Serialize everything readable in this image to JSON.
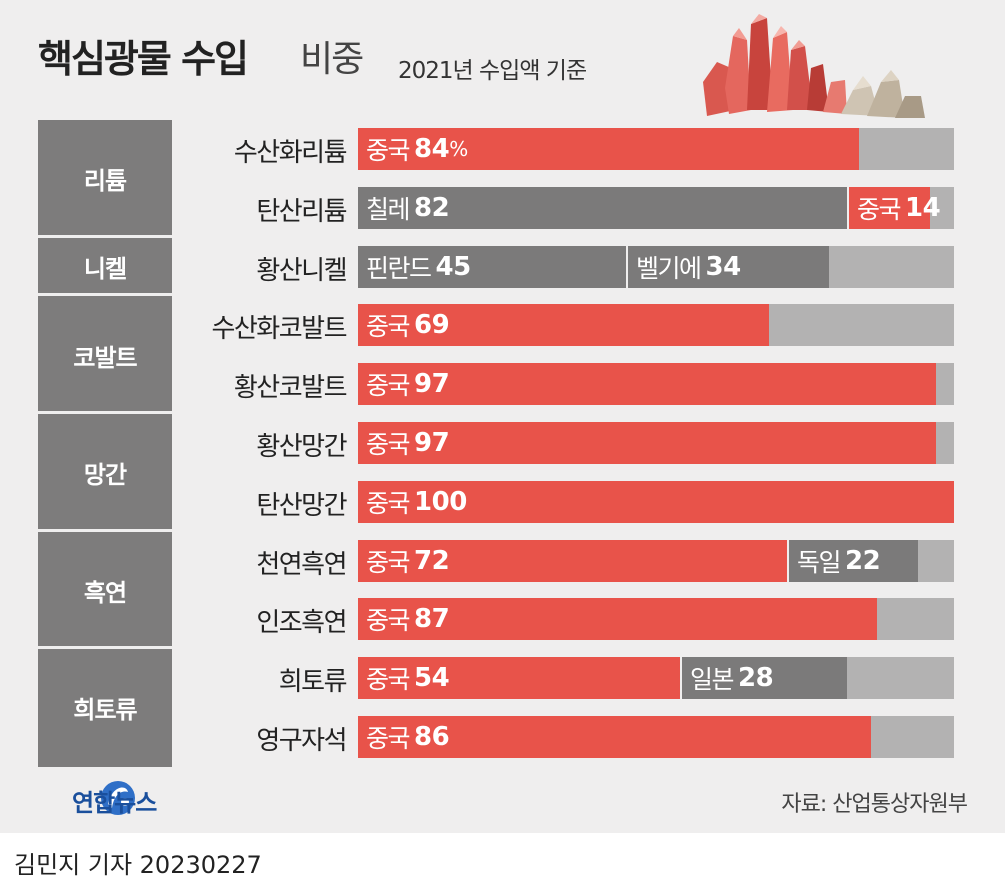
{
  "header": {
    "title": "핵심광물 수입",
    "title_suffix": "비중",
    "subtitle": "2021년 수입액 기준"
  },
  "colors": {
    "china": "#e8534a",
    "other_country": "#7b7a7a",
    "remainder": "#b3b2b2",
    "group_label_bg": "#7d7c7c",
    "card_bg": "#efeeee"
  },
  "chart_data": {
    "type": "bar",
    "orientation": "horizontal",
    "stacked": true,
    "unit": "%",
    "xlim": [
      0,
      100
    ],
    "groups": [
      {
        "name": "리튬",
        "items": [
          {
            "label": "수산화리튬",
            "segments": [
              {
                "country": "중국",
                "value": 84,
                "suffix": "%",
                "color": "china"
              }
            ]
          },
          {
            "label": "탄산리튬",
            "segments": [
              {
                "country": "칠레",
                "value": 82,
                "color": "other"
              },
              {
                "country": "중국",
                "value": 14,
                "color": "china"
              }
            ]
          }
        ]
      },
      {
        "name": "니켈",
        "items": [
          {
            "label": "황산니켈",
            "segments": [
              {
                "country": "핀란드",
                "value": 45,
                "color": "other"
              },
              {
                "country": "벨기에",
                "value": 34,
                "color": "other"
              }
            ]
          }
        ]
      },
      {
        "name": "코발트",
        "items": [
          {
            "label": "수산화코발트",
            "segments": [
              {
                "country": "중국",
                "value": 69,
                "color": "china"
              }
            ]
          },
          {
            "label": "황산코발트",
            "segments": [
              {
                "country": "중국",
                "value": 97,
                "color": "china"
              }
            ]
          }
        ]
      },
      {
        "name": "망간",
        "items": [
          {
            "label": "황산망간",
            "segments": [
              {
                "country": "중국",
                "value": 97,
                "color": "china"
              }
            ]
          },
          {
            "label": "탄산망간",
            "segments": [
              {
                "country": "중국",
                "value": 100,
                "color": "china"
              }
            ]
          }
        ]
      },
      {
        "name": "흑연",
        "items": [
          {
            "label": "천연흑연",
            "segments": [
              {
                "country": "중국",
                "value": 72,
                "color": "china"
              },
              {
                "country": "독일",
                "value": 22,
                "color": "other"
              }
            ]
          },
          {
            "label": "인조흑연",
            "segments": [
              {
                "country": "중국",
                "value": 87,
                "color": "china"
              }
            ]
          }
        ]
      },
      {
        "name": "희토류",
        "items": [
          {
            "label": "희토류",
            "segments": [
              {
                "country": "중국",
                "value": 54,
                "color": "china"
              },
              {
                "country": "일본",
                "value": 28,
                "color": "other"
              }
            ]
          },
          {
            "label": "영구자석",
            "segments": [
              {
                "country": "중국",
                "value": 86,
                "color": "china"
              }
            ]
          }
        ]
      }
    ]
  },
  "footer": {
    "logo_text": "연합뉴스",
    "source": "자료: 산업통상자원부",
    "byline": "김민지 기자  20230227"
  }
}
